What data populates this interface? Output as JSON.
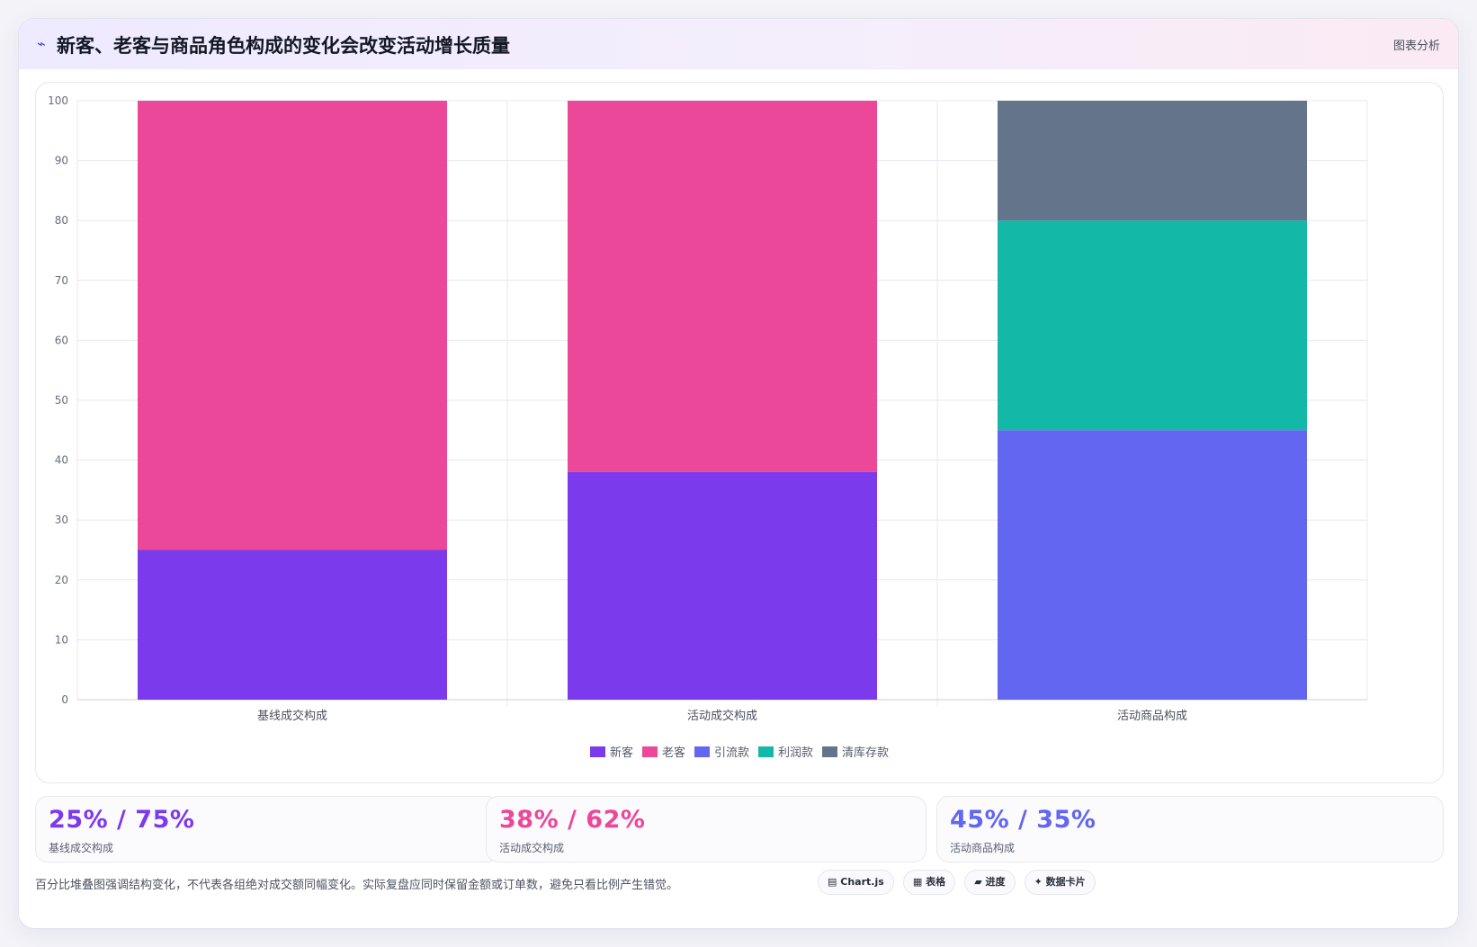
{
  "header": {
    "icon": "sparkline-icon",
    "title": "新客、老客与商品角色构成的变化会改变活动增长质量",
    "tag": "图表分析"
  },
  "colors": {
    "new_customer": "#7c3aed",
    "old_customer": "#ec4899",
    "traffic": "#6366f1",
    "profit": "#14b8a6",
    "clearance": "#64748b"
  },
  "chart_data": {
    "type": "bar",
    "stacked": true,
    "categories": [
      "基线成交构成",
      "活动成交构成",
      "活动商品构成"
    ],
    "series": [
      {
        "name": "新客",
        "color": "#7c3aed",
        "values": [
          25,
          38,
          0
        ]
      },
      {
        "name": "老客",
        "color": "#ec4899",
        "values": [
          75,
          62,
          0
        ]
      },
      {
        "name": "引流款",
        "color": "#6366f1",
        "values": [
          0,
          0,
          45
        ]
      },
      {
        "name": "利润款",
        "color": "#14b8a6",
        "values": [
          0,
          0,
          35
        ]
      },
      {
        "name": "清库存款",
        "color": "#64748b",
        "values": [
          0,
          0,
          20
        ]
      }
    ],
    "ylim": [
      0,
      100
    ],
    "yticks": [
      0,
      10,
      20,
      30,
      40,
      50,
      60,
      70,
      80,
      90,
      100
    ],
    "grid": true,
    "legend_position": "bottom"
  },
  "stats": [
    {
      "value": "25% / 75%",
      "label": "基线成交构成",
      "color": "#7c3aed"
    },
    {
      "value": "38% / 62%",
      "label": "活动成交构成",
      "color": "#ec4899"
    },
    {
      "value": "45% / 35%",
      "label": "活动商品构成",
      "color": "#6366f1"
    }
  ],
  "note": "百分比堆叠图强调结构变化，不代表各组绝对成交额同幅变化。实际复盘应同时保留金额或订单数，避免只看比例产生错觉。",
  "chips": [
    {
      "icon": "chart-icon",
      "glyph": "▤",
      "label": "Chart.js"
    },
    {
      "icon": "table-icon",
      "glyph": "▦",
      "label": "表格"
    },
    {
      "icon": "progress-icon",
      "glyph": "▰",
      "label": "进度"
    },
    {
      "icon": "sparkle-icon",
      "glyph": "✦",
      "label": "数据卡片"
    }
  ]
}
